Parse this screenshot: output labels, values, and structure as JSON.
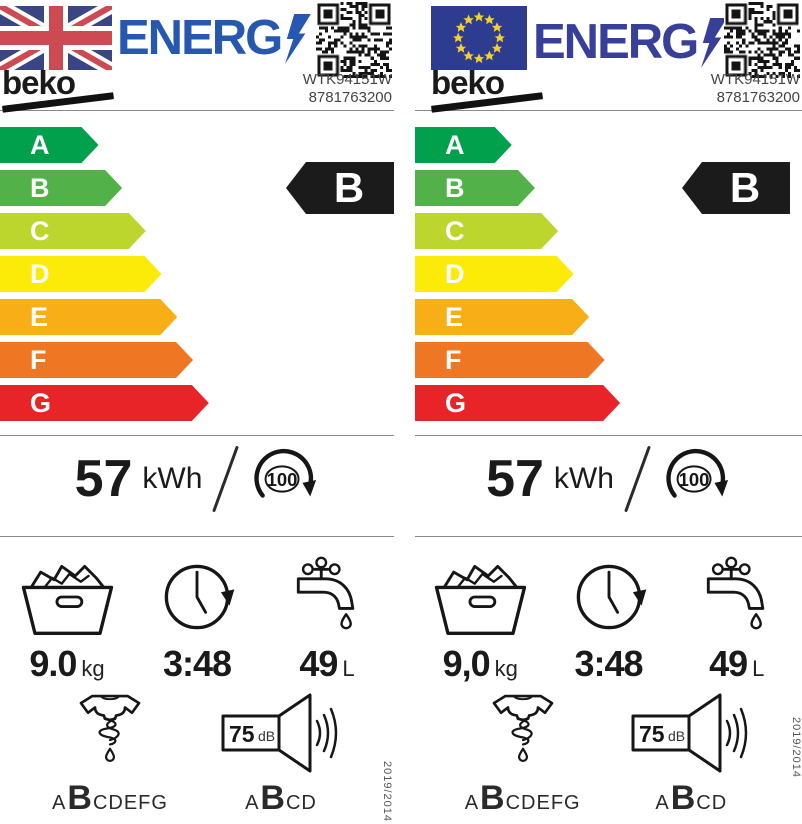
{
  "icons": [
    "uk-flag-icon",
    "eu-flag-icon",
    "lightning-bolt-icon",
    "qr-code",
    "rating-indicator-arrow",
    "cycles-per-100-icon",
    "laundry-basket-icon",
    "clock-icon",
    "water-tap-icon",
    "spin-dry-icon",
    "noise-level-icon"
  ],
  "labels": [
    {
      "region": "UK",
      "logo": {
        "text": "ENERG",
        "color": "#2558ae"
      },
      "brand": "beko",
      "model": "WTK94151W",
      "code": "8781763200",
      "scale": [
        {
          "grade": "A",
          "color": "#00a04d",
          "width": "25%"
        },
        {
          "grade": "B",
          "color": "#52b149",
          "width": "31%"
        },
        {
          "grade": "C",
          "color": "#bdd62e",
          "width": "37%"
        },
        {
          "grade": "D",
          "color": "#fceb09",
          "width": "41%"
        },
        {
          "grade": "E",
          "color": "#f7ae17",
          "width": "45%"
        },
        {
          "grade": "F",
          "color": "#ef7622",
          "width": "49%"
        },
        {
          "grade": "G",
          "color": "#e92429",
          "width": "53%"
        }
      ],
      "rating": "B",
      "energy": {
        "value": "57",
        "unit": "kWh",
        "cycles": "100"
      },
      "capacity": {
        "value": "9.0",
        "unit": "kg"
      },
      "duration": {
        "value": "3:48"
      },
      "water": {
        "value": "49",
        "unit": "L"
      },
      "spin_class": {
        "before": "A",
        "rated": "B",
        "after": "CDEFG"
      },
      "noise": {
        "value": "75",
        "unit": "dB",
        "before": "A",
        "rated": "B",
        "after": "CD"
      },
      "regulation": "2019/2014"
    },
    {
      "region": "EU",
      "logo": {
        "text": "ENERG",
        "color": "#383f99"
      },
      "brand": "beko",
      "model": "WTK94151W",
      "code": "8781763200",
      "scale": [
        {
          "grade": "A",
          "color": "#00a04d",
          "width": "25%"
        },
        {
          "grade": "B",
          "color": "#52b149",
          "width": "31%"
        },
        {
          "grade": "C",
          "color": "#bdd62e",
          "width": "37%"
        },
        {
          "grade": "D",
          "color": "#fceb09",
          "width": "41%"
        },
        {
          "grade": "E",
          "color": "#f7ae17",
          "width": "45%"
        },
        {
          "grade": "F",
          "color": "#ef7622",
          "width": "49%"
        },
        {
          "grade": "G",
          "color": "#e92429",
          "width": "53%"
        }
      ],
      "rating": "B",
      "energy": {
        "value": "57",
        "unit": "kWh",
        "cycles": "100"
      },
      "capacity": {
        "value": "9,0",
        "unit": "kg"
      },
      "duration": {
        "value": "3:48"
      },
      "water": {
        "value": "49",
        "unit": "L"
      },
      "spin_class": {
        "before": "A",
        "rated": "B",
        "after": "CDEFG"
      },
      "noise": {
        "value": "75",
        "unit": "dB",
        "before": "A",
        "rated": "B",
        "after": "CD"
      },
      "regulation": "2019/2014"
    }
  ]
}
